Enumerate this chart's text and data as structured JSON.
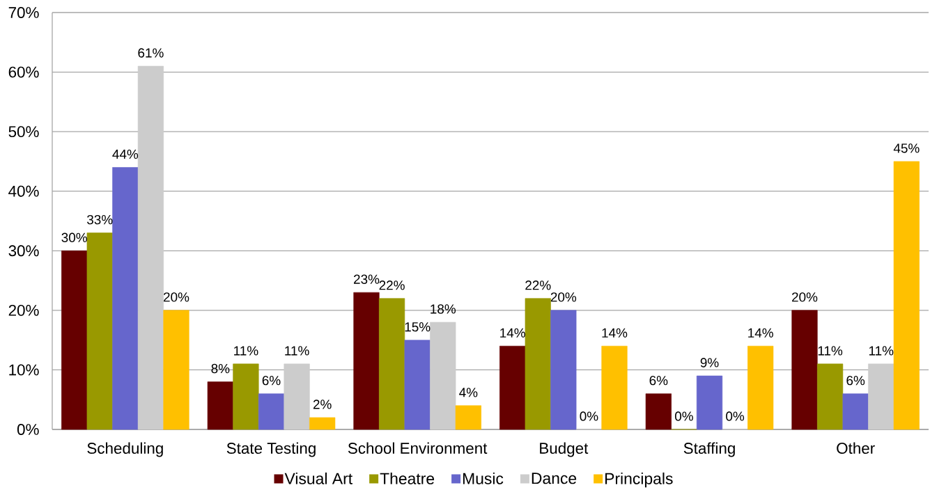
{
  "chart_data": {
    "type": "bar",
    "categories": [
      "Scheduling",
      "State Testing",
      "School Environment",
      "Budget",
      "Staffing",
      "Other"
    ],
    "series": [
      {
        "name": "Visual Art",
        "color": "#660000",
        "values": [
          30,
          8,
          23,
          14,
          6,
          20
        ],
        "value_labels": [
          "30%",
          "8%",
          "23%",
          "14%",
          "6%",
          "20%"
        ]
      },
      {
        "name": "Theatre",
        "color": "#999900",
        "values": [
          33,
          11,
          22,
          22,
          0,
          11
        ],
        "value_labels": [
          "33%",
          "11%",
          "22%",
          "22%",
          "0%",
          "11%"
        ]
      },
      {
        "name": "Music",
        "color": "#6666cc",
        "values": [
          44,
          6,
          15,
          20,
          9,
          6
        ],
        "value_labels": [
          "44%",
          "6%",
          "15%",
          "20%",
          "9%",
          "6%"
        ]
      },
      {
        "name": "Dance",
        "color": "#cccccc",
        "values": [
          61,
          11,
          18,
          0,
          0,
          11
        ],
        "value_labels": [
          "61%",
          "11%",
          "18%",
          "0%",
          "0%",
          "11%"
        ]
      },
      {
        "name": "Principals",
        "color": "#ffc000",
        "values": [
          20,
          2,
          4,
          14,
          14,
          45
        ],
        "value_labels": [
          "20%",
          "2%",
          "4%",
          "14%",
          "14%",
          "45%"
        ]
      }
    ],
    "ylim": [
      0,
      70
    ],
    "yticks": [
      {
        "value": 0,
        "label": "0%"
      },
      {
        "value": 10,
        "label": "10%"
      },
      {
        "value": 20,
        "label": "20%"
      },
      {
        "value": 30,
        "label": "30%"
      },
      {
        "value": 40,
        "label": "40%"
      },
      {
        "value": 50,
        "label": "50%"
      },
      {
        "value": 60,
        "label": "60%"
      },
      {
        "value": 70,
        "label": "70%"
      }
    ],
    "grid": "y",
    "legend": "bottom"
  }
}
